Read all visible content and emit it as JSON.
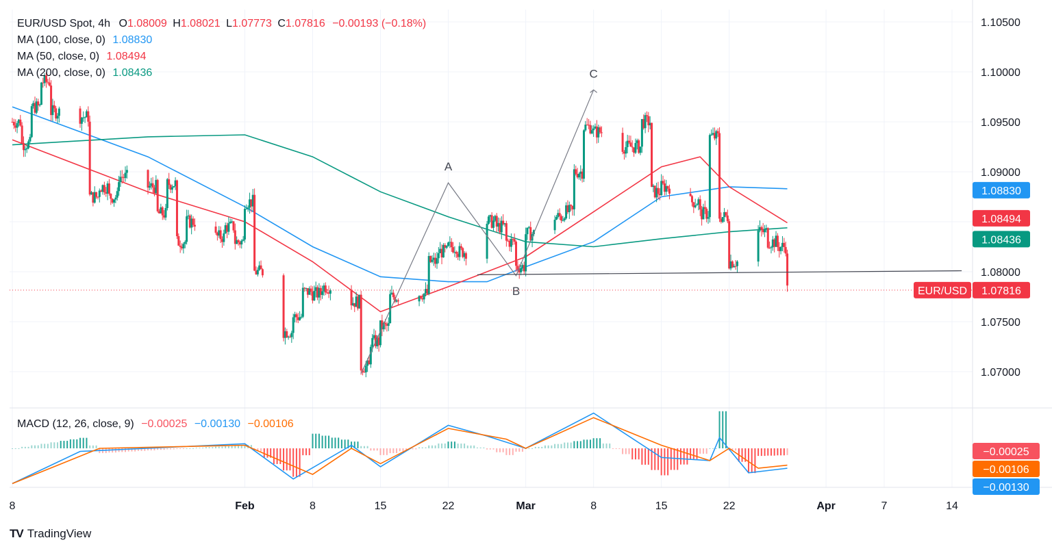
{
  "header": {
    "symbol": "EUR/USD Spot, 4h",
    "o_label": "O",
    "o_value": "1.08009",
    "h_label": "H",
    "h_value": "1.08021",
    "l_label": "L",
    "l_value": "1.07773",
    "c_label": "C",
    "c_value": "1.07816",
    "change": "−0.00193 (−0.18%)"
  },
  "indicators": [
    {
      "label": "MA (100, close, 0)",
      "value": "1.08830",
      "color": "#2196f3"
    },
    {
      "label": "MA (50, close, 0)",
      "value": "1.08494",
      "color": "#f23645"
    },
    {
      "label": "MA (200, close, 0)",
      "value": "1.08436",
      "color": "#089981"
    }
  ],
  "macd_legend": {
    "label": "MACD (12, 26, close, 9)",
    "hist": "−0.00025",
    "macd": "−0.00130",
    "signal": "−0.00106"
  },
  "price_labels": [
    {
      "text": "1.08830",
      "color": "#2196f3",
      "price": 1.0883
    },
    {
      "text": "1.08494",
      "color": "#f23645",
      "price": 1.08494
    },
    {
      "text": "1.08436",
      "color": "#089981",
      "price": 1.08436
    }
  ],
  "last_price": {
    "symbol": "EUR/USD",
    "value": "1.07816",
    "price": 1.07816,
    "color": "#f23645"
  },
  "macd_labels": [
    {
      "text": "−0.00025",
      "color": "#f7525f"
    },
    {
      "text": "−0.00106",
      "color": "#ff6d00"
    },
    {
      "text": "−0.00130",
      "color": "#2196f3"
    }
  ],
  "brand": "TradingView",
  "annotations": [
    {
      "text": "A",
      "date": "2024-02-22",
      "price": 1.0889
    },
    {
      "text": "B",
      "date": "2024-02-29",
      "price": 1.0796
    },
    {
      "text": "C",
      "date": "2024-03-08",
      "price": 1.0982
    }
  ],
  "chart_data": {
    "type": "candlestick",
    "timeframe": "4h",
    "ylim": [
      1.065,
      1.1075
    ],
    "y_ticks": [
      "1.07000",
      "1.07500",
      "1.08000",
      "1.08500",
      "1.09000",
      "1.09500",
      "1.10000",
      "1.10500"
    ],
    "x_ticks": [
      "8",
      "Feb",
      "8",
      "15",
      "22",
      "Mar",
      "8",
      "15",
      "22",
      "Apr",
      "7",
      "14"
    ],
    "close_path": [
      [
        "2024-01-08",
        1.095
      ],
      [
        "2024-01-09",
        1.0928
      ],
      [
        "2024-01-10",
        1.0965
      ],
      [
        "2024-01-11",
        1.099
      ],
      [
        "2024-01-12",
        1.096
      ],
      [
        "2024-01-15",
        1.0955
      ],
      [
        "2024-01-16",
        1.0875
      ],
      [
        "2024-01-17",
        1.0885
      ],
      [
        "2024-01-18",
        1.0875
      ],
      [
        "2024-01-19",
        1.0895
      ],
      [
        "2024-01-22",
        1.0885
      ],
      [
        "2024-01-23",
        1.0858
      ],
      [
        "2024-01-24",
        1.0888
      ],
      [
        "2024-01-25",
        1.083
      ],
      [
        "2024-01-26",
        1.085
      ],
      [
        "2024-01-29",
        1.0835
      ],
      [
        "2024-01-30",
        1.0845
      ],
      [
        "2024-01-31",
        1.083
      ],
      [
        "2024-02-01",
        1.087
      ],
      [
        "2024-02-02",
        1.08
      ],
      [
        "2024-02-05",
        1.074
      ],
      [
        "2024-02-06",
        1.0755
      ],
      [
        "2024-02-07",
        1.078
      ],
      [
        "2024-02-08",
        1.0778
      ],
      [
        "2024-02-09",
        1.0785
      ],
      [
        "2024-02-12",
        1.077
      ],
      [
        "2024-02-13",
        1.0705
      ],
      [
        "2024-02-14",
        1.073
      ],
      [
        "2024-02-15",
        1.0745
      ],
      [
        "2024-02-16",
        1.0775
      ],
      [
        "2024-02-19",
        1.0778
      ],
      [
        "2024-02-20",
        1.081
      ],
      [
        "2024-02-21",
        1.082
      ],
      [
        "2024-02-22",
        1.0825
      ],
      [
        "2024-02-23",
        1.082
      ],
      [
        "2024-02-26",
        1.085
      ],
      [
        "2024-02-27",
        1.0845
      ],
      [
        "2024-02-28",
        1.083
      ],
      [
        "2024-02-29",
        1.0805
      ],
      [
        "2024-03-01",
        1.0838
      ],
      [
        "2024-03-04",
        1.0855
      ],
      [
        "2024-03-05",
        1.086
      ],
      [
        "2024-03-06",
        1.09
      ],
      [
        "2024-03-07",
        1.0945
      ],
      [
        "2024-03-08",
        1.094
      ],
      [
        "2024-03-11",
        1.0925
      ],
      [
        "2024-03-12",
        1.0925
      ],
      [
        "2024-03-13",
        1.095
      ],
      [
        "2024-03-14",
        1.088
      ],
      [
        "2024-03-15",
        1.0885
      ],
      [
        "2024-03-18",
        1.087
      ],
      [
        "2024-03-19",
        1.0858
      ],
      [
        "2024-03-20",
        1.0935
      ],
      [
        "2024-03-21",
        1.0855
      ],
      [
        "2024-03-22",
        1.081
      ],
      [
        "2024-03-25",
        1.084
      ],
      [
        "2024-03-26",
        1.083
      ],
      [
        "2024-03-27",
        1.0825
      ],
      [
        "2024-03-28",
        1.0782
      ]
    ],
    "series": [
      {
        "name": "MA (100, close, 0)",
        "color": "#2196f3",
        "points": [
          [
            "2024-01-08",
            1.0965
          ],
          [
            "2024-01-22",
            1.0915
          ],
          [
            "2024-02-01",
            1.0865
          ],
          [
            "2024-02-08",
            1.0825
          ],
          [
            "2024-02-15",
            1.0795
          ],
          [
            "2024-02-22",
            1.079
          ],
          [
            "2024-02-26",
            1.079
          ],
          [
            "2024-03-01",
            1.0805
          ],
          [
            "2024-03-08",
            1.083
          ],
          [
            "2024-03-15",
            1.0875
          ],
          [
            "2024-03-22",
            1.0885
          ],
          [
            "2024-03-28",
            1.0883
          ]
        ]
      },
      {
        "name": "MA (50, close, 0)",
        "color": "#f23645",
        "points": [
          [
            "2024-01-08",
            1.0932
          ],
          [
            "2024-01-22",
            1.088
          ],
          [
            "2024-02-01",
            1.085
          ],
          [
            "2024-02-08",
            1.081
          ],
          [
            "2024-02-15",
            1.076
          ],
          [
            "2024-02-22",
            1.0785
          ],
          [
            "2024-03-01",
            1.0815
          ],
          [
            "2024-03-08",
            1.086
          ],
          [
            "2024-03-15",
            1.0905
          ],
          [
            "2024-03-19",
            1.0915
          ],
          [
            "2024-03-22",
            1.0885
          ],
          [
            "2024-03-28",
            1.0849
          ]
        ]
      },
      {
        "name": "MA (200, close, 0)",
        "color": "#089981",
        "points": [
          [
            "2024-01-08",
            1.0927
          ],
          [
            "2024-01-22",
            1.0935
          ],
          [
            "2024-02-01",
            1.0937
          ],
          [
            "2024-02-08",
            1.0915
          ],
          [
            "2024-02-15",
            1.088
          ],
          [
            "2024-02-22",
            1.0855
          ],
          [
            "2024-03-01",
            1.083
          ],
          [
            "2024-03-08",
            1.0825
          ],
          [
            "2024-03-15",
            1.0833
          ],
          [
            "2024-03-22",
            1.084
          ],
          [
            "2024-03-28",
            1.0844
          ]
        ]
      }
    ],
    "lines": [
      {
        "name": "abc-wave",
        "points": [
          [
            "2024-02-13",
            1.0698
          ],
          [
            "2024-02-22",
            1.0889
          ],
          [
            "2024-02-29",
            1.0796
          ],
          [
            "2024-03-08",
            1.0982
          ]
        ]
      },
      {
        "name": "neckline",
        "points": [
          [
            "2024-02-25",
            1.0797
          ],
          [
            "2024-04-15",
            1.0801
          ]
        ]
      }
    ],
    "macd": {
      "hist_last": -0.00025,
      "macd_last": -0.0013,
      "signal_last": -0.00106,
      "macd_path": [
        [
          "2024-01-08",
          -0.0023
        ],
        [
          "2024-01-15",
          -0.0002
        ],
        [
          "2024-02-01",
          0.0003
        ],
        [
          "2024-02-06",
          -0.002
        ],
        [
          "2024-02-12",
          0.0002
        ],
        [
          "2024-02-15",
          -0.0012
        ],
        [
          "2024-02-22",
          0.0015
        ],
        [
          "2024-02-26",
          0.0008
        ],
        [
          "2024-03-01",
          0.0
        ],
        [
          "2024-03-08",
          0.0023
        ],
        [
          "2024-03-15",
          -0.0006
        ],
        [
          "2024-03-20",
          -0.0008
        ],
        [
          "2024-03-21",
          0.0007
        ],
        [
          "2024-03-24",
          -0.0016
        ],
        [
          "2024-03-28",
          -0.0013
        ]
      ],
      "signal_path": [
        [
          "2024-01-08",
          -0.0023
        ],
        [
          "2024-01-17",
          0.0
        ],
        [
          "2024-02-01",
          0.0002
        ],
        [
          "2024-02-08",
          -0.0017
        ],
        [
          "2024-02-12",
          0.0
        ],
        [
          "2024-02-15",
          -0.001
        ],
        [
          "2024-02-22",
          0.0013
        ],
        [
          "2024-02-28",
          0.0006
        ],
        [
          "2024-03-01",
          0.0
        ],
        [
          "2024-03-08",
          0.002
        ],
        [
          "2024-03-15",
          0.0002
        ],
        [
          "2024-03-20",
          -0.0008
        ],
        [
          "2024-03-22",
          0.0
        ],
        [
          "2024-03-25",
          -0.0013
        ],
        [
          "2024-03-28",
          -0.0011
        ]
      ]
    }
  }
}
